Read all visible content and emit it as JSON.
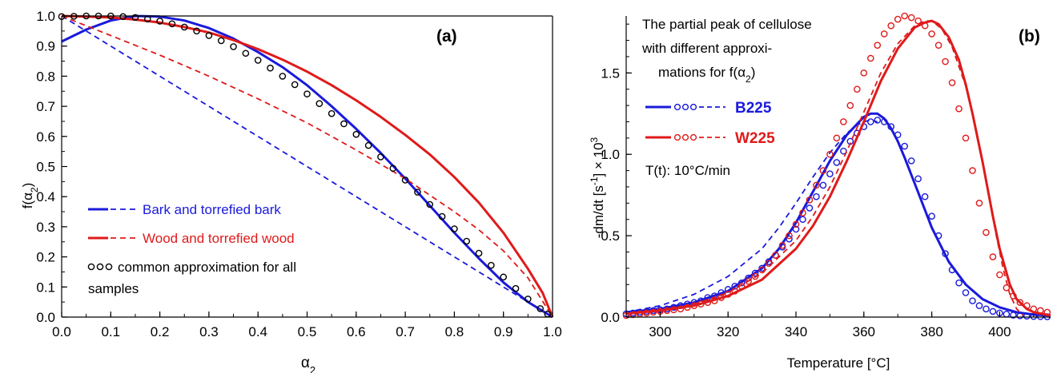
{
  "chart_data": [
    {
      "type": "line",
      "panel_label": "(a)",
      "xlabel": "α2",
      "ylabel": "f(α2)",
      "xlim": [
        0,
        1
      ],
      "ylim": [
        0,
        1
      ],
      "xticks": [
        0.0,
        0.1,
        0.2,
        0.3,
        0.4,
        0.5,
        0.6,
        0.7,
        0.8,
        0.9,
        1.0
      ],
      "yticks": [
        0.0,
        0.1,
        0.2,
        0.3,
        0.4,
        0.5,
        0.6,
        0.7,
        0.8,
        0.9,
        1.0
      ],
      "grid": false,
      "legend_position": "bottom-left",
      "legend": [
        {
          "label": "Bark and torrefied bark",
          "style": "solid-dashed",
          "color": "#1a1adb"
        },
        {
          "label": "Wood and torrefied wood",
          "style": "solid-dashed",
          "color": "#e01a1a"
        },
        {
          "label": "common approximation for all samples",
          "style": "circles",
          "color": "#000000"
        }
      ],
      "series": [
        {
          "style": "solid",
          "color": "#1a1adb",
          "x": [
            0,
            0.05,
            0.1,
            0.15,
            0.2,
            0.25,
            0.3,
            0.35,
            0.4,
            0.45,
            0.5,
            0.55,
            0.6,
            0.65,
            0.7,
            0.75,
            0.8,
            0.85,
            0.9,
            0.95,
            1.0
          ],
          "y": [
            0.915,
            0.955,
            0.985,
            1.0,
            0.998,
            0.985,
            0.96,
            0.925,
            0.88,
            0.83,
            0.77,
            0.7,
            0.625,
            0.545,
            0.46,
            0.37,
            0.28,
            0.195,
            0.115,
            0.05,
            0.0
          ]
        },
        {
          "style": "dashed",
          "color": "#1a1adb",
          "x": [
            0,
            0.1,
            0.2,
            0.3,
            0.4,
            0.5,
            0.6,
            0.7,
            0.8,
            0.9,
            0.95,
            1.0
          ],
          "y": [
            1.0,
            0.9,
            0.8,
            0.7,
            0.6,
            0.5,
            0.4,
            0.3,
            0.2,
            0.1,
            0.05,
            0.0
          ]
        },
        {
          "style": "solid",
          "color": "#e01a1a",
          "x": [
            0,
            0.05,
            0.1,
            0.15,
            0.2,
            0.25,
            0.3,
            0.35,
            0.4,
            0.45,
            0.5,
            0.55,
            0.6,
            0.65,
            0.7,
            0.75,
            0.8,
            0.85,
            0.9,
            0.95,
            0.98,
            1.0
          ],
          "y": [
            1.0,
            0.998,
            0.995,
            0.988,
            0.978,
            0.963,
            0.945,
            0.92,
            0.89,
            0.855,
            0.815,
            0.77,
            0.72,
            0.665,
            0.605,
            0.54,
            0.465,
            0.38,
            0.28,
            0.16,
            0.08,
            0.0
          ]
        },
        {
          "style": "dashed",
          "color": "#e01a1a",
          "x": [
            0,
            0.1,
            0.2,
            0.3,
            0.4,
            0.5,
            0.6,
            0.7,
            0.8,
            0.85,
            0.9,
            0.95,
            1.0
          ],
          "y": [
            1.0,
            0.935,
            0.87,
            0.8,
            0.725,
            0.645,
            0.555,
            0.46,
            0.35,
            0.29,
            0.22,
            0.13,
            0.0
          ]
        },
        {
          "style": "circles",
          "color": "#000000",
          "x": [
            0.0,
            0.025,
            0.05,
            0.075,
            0.1,
            0.125,
            0.15,
            0.175,
            0.2,
            0.225,
            0.25,
            0.275,
            0.3,
            0.325,
            0.35,
            0.375,
            0.4,
            0.425,
            0.45,
            0.475,
            0.5,
            0.525,
            0.55,
            0.575,
            0.6,
            0.625,
            0.65,
            0.675,
            0.7,
            0.725,
            0.75,
            0.775,
            0.8,
            0.825,
            0.85,
            0.875,
            0.9,
            0.925,
            0.95,
            0.975,
            0.99
          ],
          "y": [
            0.998,
            0.999,
            1.0,
            1.0,
            1.0,
            0.998,
            0.995,
            0.99,
            0.983,
            0.974,
            0.963,
            0.95,
            0.935,
            0.918,
            0.898,
            0.876,
            0.853,
            0.827,
            0.8,
            0.772,
            0.741,
            0.709,
            0.676,
            0.642,
            0.607,
            0.57,
            0.532,
            0.494,
            0.455,
            0.415,
            0.374,
            0.334,
            0.293,
            0.252,
            0.212,
            0.172,
            0.133,
            0.095,
            0.06,
            0.028,
            0.01
          ]
        }
      ]
    },
    {
      "type": "line",
      "panel_label": "(b)",
      "xlabel": "Temperature [°C]",
      "ylabel": "-dm/dt [s-1] × 10-3",
      "ylabel_parts": {
        "a": "-dm/dt  [s",
        "sup1": "-1",
        "b": "]  ×  10",
        "sup2": "3"
      },
      "xlim": [
        290,
        415
      ],
      "ylim": [
        0,
        1.85
      ],
      "xticks": [
        300,
        320,
        340,
        360,
        380,
        400
      ],
      "yticks": [
        0.0,
        0.5,
        1.0,
        1.5
      ],
      "grid": false,
      "annotation": [
        "The partial peak of cellulose",
        "with different approxi-",
        "mations for f(α2)"
      ],
      "rate_text": "T(t): 10°C/min",
      "legend_position": "top-left",
      "legend": [
        {
          "label": "B225",
          "color": "#1a1adb"
        },
        {
          "label": "W225",
          "color": "#e01a1a"
        }
      ],
      "series": [
        {
          "name": "B225",
          "style": "solid",
          "color": "#1a1adb",
          "x": [
            290,
            300,
            310,
            320,
            330,
            335,
            340,
            345,
            350,
            355,
            360,
            362,
            364,
            366,
            368,
            370,
            372,
            375,
            380,
            385,
            390,
            395,
            400,
            405,
            410,
            415
          ],
          "y": [
            0.03,
            0.05,
            0.09,
            0.16,
            0.3,
            0.42,
            0.58,
            0.77,
            0.96,
            1.12,
            1.23,
            1.25,
            1.25,
            1.22,
            1.16,
            1.08,
            0.98,
            0.82,
            0.55,
            0.34,
            0.2,
            0.11,
            0.06,
            0.03,
            0.015,
            0.01
          ]
        },
        {
          "name": "B225",
          "style": "dashed",
          "color": "#1a1adb",
          "x": [
            290,
            300,
            310,
            320,
            330,
            335,
            340,
            345,
            350,
            355,
            358,
            360,
            362,
            364
          ],
          "y": [
            0.03,
            0.07,
            0.14,
            0.25,
            0.42,
            0.55,
            0.7,
            0.86,
            1.01,
            1.13,
            1.18,
            1.2,
            1.21,
            1.2
          ]
        },
        {
          "name": "B225",
          "style": "circles",
          "color": "#1a1adb",
          "x": [
            290,
            292,
            294,
            296,
            298,
            300,
            302,
            304,
            306,
            308,
            310,
            312,
            314,
            316,
            318,
            320,
            322,
            324,
            326,
            328,
            330,
            332,
            334,
            336,
            338,
            340,
            342,
            344,
            346,
            348,
            350,
            352,
            354,
            356,
            358,
            360,
            362,
            364,
            366,
            368,
            370,
            372,
            374,
            376,
            378,
            380,
            382,
            384,
            386,
            388,
            390,
            392,
            394,
            396,
            398,
            400,
            402,
            404,
            406,
            408,
            410,
            412,
            414
          ],
          "y": [
            0.02,
            0.025,
            0.03,
            0.035,
            0.04,
            0.045,
            0.05,
            0.06,
            0.07,
            0.08,
            0.09,
            0.1,
            0.12,
            0.13,
            0.15,
            0.17,
            0.19,
            0.21,
            0.24,
            0.27,
            0.3,
            0.34,
            0.38,
            0.43,
            0.48,
            0.54,
            0.6,
            0.67,
            0.74,
            0.81,
            0.88,
            0.95,
            1.02,
            1.08,
            1.13,
            1.17,
            1.2,
            1.21,
            1.2,
            1.17,
            1.12,
            1.05,
            0.96,
            0.85,
            0.74,
            0.62,
            0.5,
            0.39,
            0.29,
            0.21,
            0.15,
            0.1,
            0.07,
            0.05,
            0.035,
            0.025,
            0.018,
            0.012,
            0.008,
            0.006,
            0.004,
            0.003,
            0.002
          ]
        },
        {
          "name": "W225",
          "style": "solid",
          "color": "#e01a1a",
          "x": [
            290,
            300,
            310,
            320,
            330,
            340,
            345,
            350,
            355,
            360,
            365,
            370,
            375,
            378,
            380,
            382,
            385,
            388,
            390,
            392,
            395,
            398,
            400,
            403,
            405,
            408,
            410,
            415
          ],
          "y": [
            0.02,
            0.04,
            0.07,
            0.13,
            0.23,
            0.42,
            0.56,
            0.74,
            0.96,
            1.2,
            1.45,
            1.65,
            1.78,
            1.81,
            1.82,
            1.8,
            1.72,
            1.58,
            1.43,
            1.25,
            0.95,
            0.62,
            0.42,
            0.2,
            0.11,
            0.05,
            0.03,
            0.01
          ]
        },
        {
          "name": "W225",
          "style": "dashed",
          "color": "#e01a1a",
          "x": [
            290,
            300,
            310,
            320,
            330,
            340,
            345,
            350,
            355,
            360,
            365,
            370,
            375,
            378,
            380,
            383,
            386,
            390,
            393,
            396,
            399,
            401,
            403,
            405,
            407
          ],
          "y": [
            0.02,
            0.04,
            0.08,
            0.15,
            0.27,
            0.47,
            0.62,
            0.8,
            1.02,
            1.26,
            1.5,
            1.68,
            1.79,
            1.82,
            1.82,
            1.77,
            1.66,
            1.42,
            1.16,
            0.84,
            0.5,
            0.3,
            0.14,
            0.05,
            0.01
          ]
        },
        {
          "name": "W225",
          "style": "circles",
          "color": "#e01a1a",
          "x": [
            290,
            292,
            294,
            296,
            298,
            300,
            302,
            304,
            306,
            308,
            310,
            312,
            314,
            316,
            318,
            320,
            322,
            324,
            326,
            328,
            330,
            332,
            334,
            336,
            338,
            340,
            342,
            344,
            346,
            348,
            350,
            352,
            354,
            356,
            358,
            360,
            362,
            364,
            366,
            368,
            370,
            372,
            374,
            376,
            378,
            380,
            382,
            384,
            386,
            388,
            390,
            392,
            394,
            396,
            398,
            400,
            402,
            404,
            406,
            408,
            410,
            412,
            414
          ],
          "y": [
            0.01,
            0.015,
            0.02,
            0.025,
            0.03,
            0.035,
            0.04,
            0.045,
            0.05,
            0.06,
            0.07,
            0.08,
            0.09,
            0.1,
            0.12,
            0.14,
            0.16,
            0.19,
            0.22,
            0.25,
            0.29,
            0.33,
            0.38,
            0.44,
            0.5,
            0.57,
            0.64,
            0.72,
            0.81,
            0.9,
            1.0,
            1.1,
            1.2,
            1.3,
            1.4,
            1.5,
            1.59,
            1.67,
            1.74,
            1.79,
            1.83,
            1.85,
            1.84,
            1.82,
            1.79,
            1.74,
            1.67,
            1.57,
            1.44,
            1.28,
            1.1,
            0.9,
            0.7,
            0.52,
            0.37,
            0.26,
            0.18,
            0.13,
            0.09,
            0.07,
            0.05,
            0.04,
            0.03
          ]
        }
      ]
    }
  ]
}
